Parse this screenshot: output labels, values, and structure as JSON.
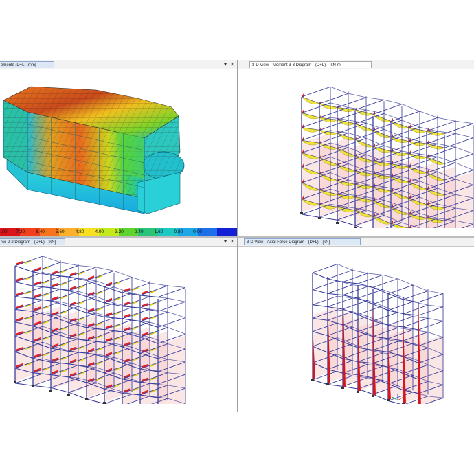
{
  "panels": {
    "top_left": {
      "tab_fragment": "ements (D+L)  [mm]",
      "dropdown_icon": "chevron-down-icon",
      "close_icon": "close-icon"
    },
    "top_right": {
      "tab_view": "3-D View",
      "tab_diagram": "Moment 3-3 Diagram",
      "tab_case": "(D+L)",
      "tab_units": "[kN-m]"
    },
    "bottom_left": {
      "tab_fragment": "rce 2-2 Diagram",
      "tab_case": "(D+L)",
      "tab_units": "[kN]",
      "dropdown_icon": "chevron-down-icon",
      "close_icon": "close-icon"
    },
    "bottom_right": {
      "tab_view": "3-D View",
      "tab_diagram": "Axial Force Diagram",
      "tab_case": "(D+L)",
      "tab_units": "[kN]"
    }
  },
  "legend": {
    "labels": [
      ".00",
      "-7.20",
      "-6.40",
      "-5.60",
      "-4.80",
      "-4.00",
      "-3.20",
      "-2.40",
      "-1.60",
      "-0.80",
      "0.00",
      ""
    ],
    "colors": [
      "#d9141c",
      "#f2401e",
      "#f7741c",
      "#fbb02c",
      "#f6e01f",
      "#c4ea1c",
      "#5fd430",
      "#27c47a",
      "#1cc7c4",
      "#1da6e6",
      "#1c6fe8",
      "#1320d6"
    ]
  },
  "colors": {
    "frame": "#3b3f9c",
    "moment": "#f0e427",
    "moment_neg": "#e0242b",
    "shear": "#e0242b",
    "axial": "#d8141c",
    "zone_fill": "#f6c7c7"
  }
}
